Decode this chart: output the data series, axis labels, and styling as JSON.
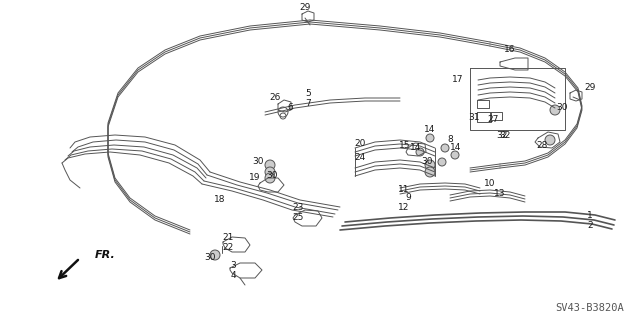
{
  "bg_color": "#ffffff",
  "fig_width": 6.4,
  "fig_height": 3.19,
  "dpi": 100,
  "line_color": "#3a3a3a",
  "label_color": "#1a1a1a",
  "label_fontsize": 6.5,
  "watermark_text": "SV43-B3820A",
  "watermark_fontsize": 7.5,
  "diagram_id": "SV43-B3820A"
}
